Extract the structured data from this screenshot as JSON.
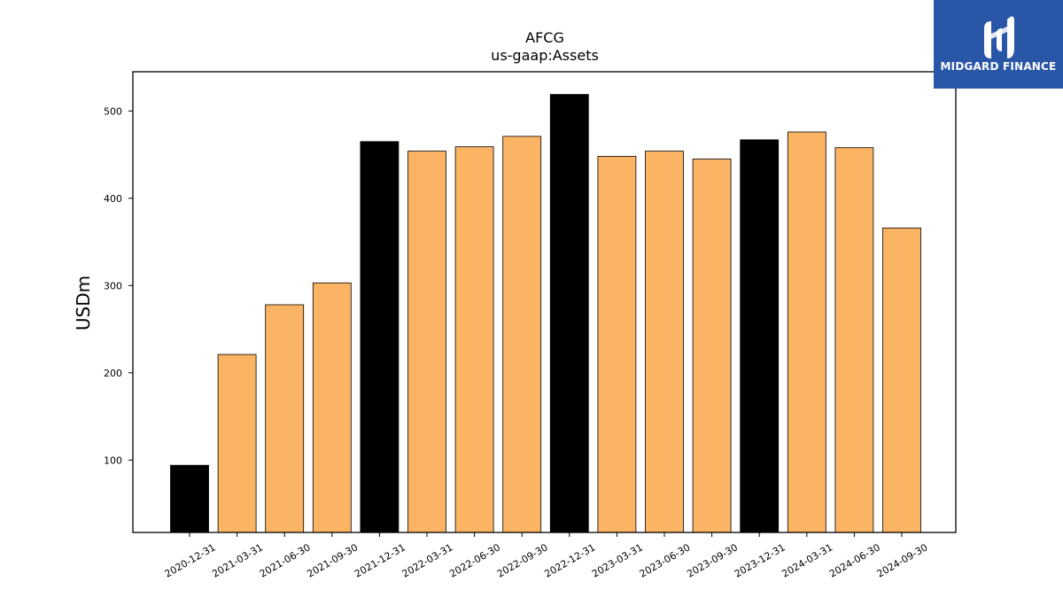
{
  "chart_data": {
    "type": "bar",
    "title": "AFCG",
    "subtitle": "us-gaap:Assets",
    "ylabel": "USDm",
    "xlabel": "",
    "categories": [
      "2020-12-31",
      "2021-03-31",
      "2021-06-30",
      "2021-09-30",
      "2021-12-31",
      "2022-03-31",
      "2022-06-30",
      "2022-09-30",
      "2022-12-31",
      "2023-03-31",
      "2023-06-30",
      "2023-09-30",
      "2023-12-31",
      "2024-03-31",
      "2024-06-30",
      "2024-09-30"
    ],
    "values": [
      94,
      221,
      278,
      303,
      465,
      454,
      459,
      471,
      519,
      448,
      454,
      445,
      467,
      476,
      458,
      366
    ],
    "highlight": [
      true,
      false,
      false,
      false,
      true,
      false,
      false,
      false,
      true,
      false,
      false,
      false,
      true,
      false,
      false,
      false
    ],
    "colors": {
      "highlight": "#000000",
      "default": "#fbb464",
      "edge": "#000000"
    },
    "ylim": [
      17,
      545
    ],
    "yticks": [
      100,
      200,
      300,
      400,
      500
    ],
    "grid": false,
    "legend": "none"
  },
  "logo": {
    "text": "MIDGARD FINANCE",
    "background": "#2a56a8",
    "icon": "midgard-logo-icon"
  }
}
